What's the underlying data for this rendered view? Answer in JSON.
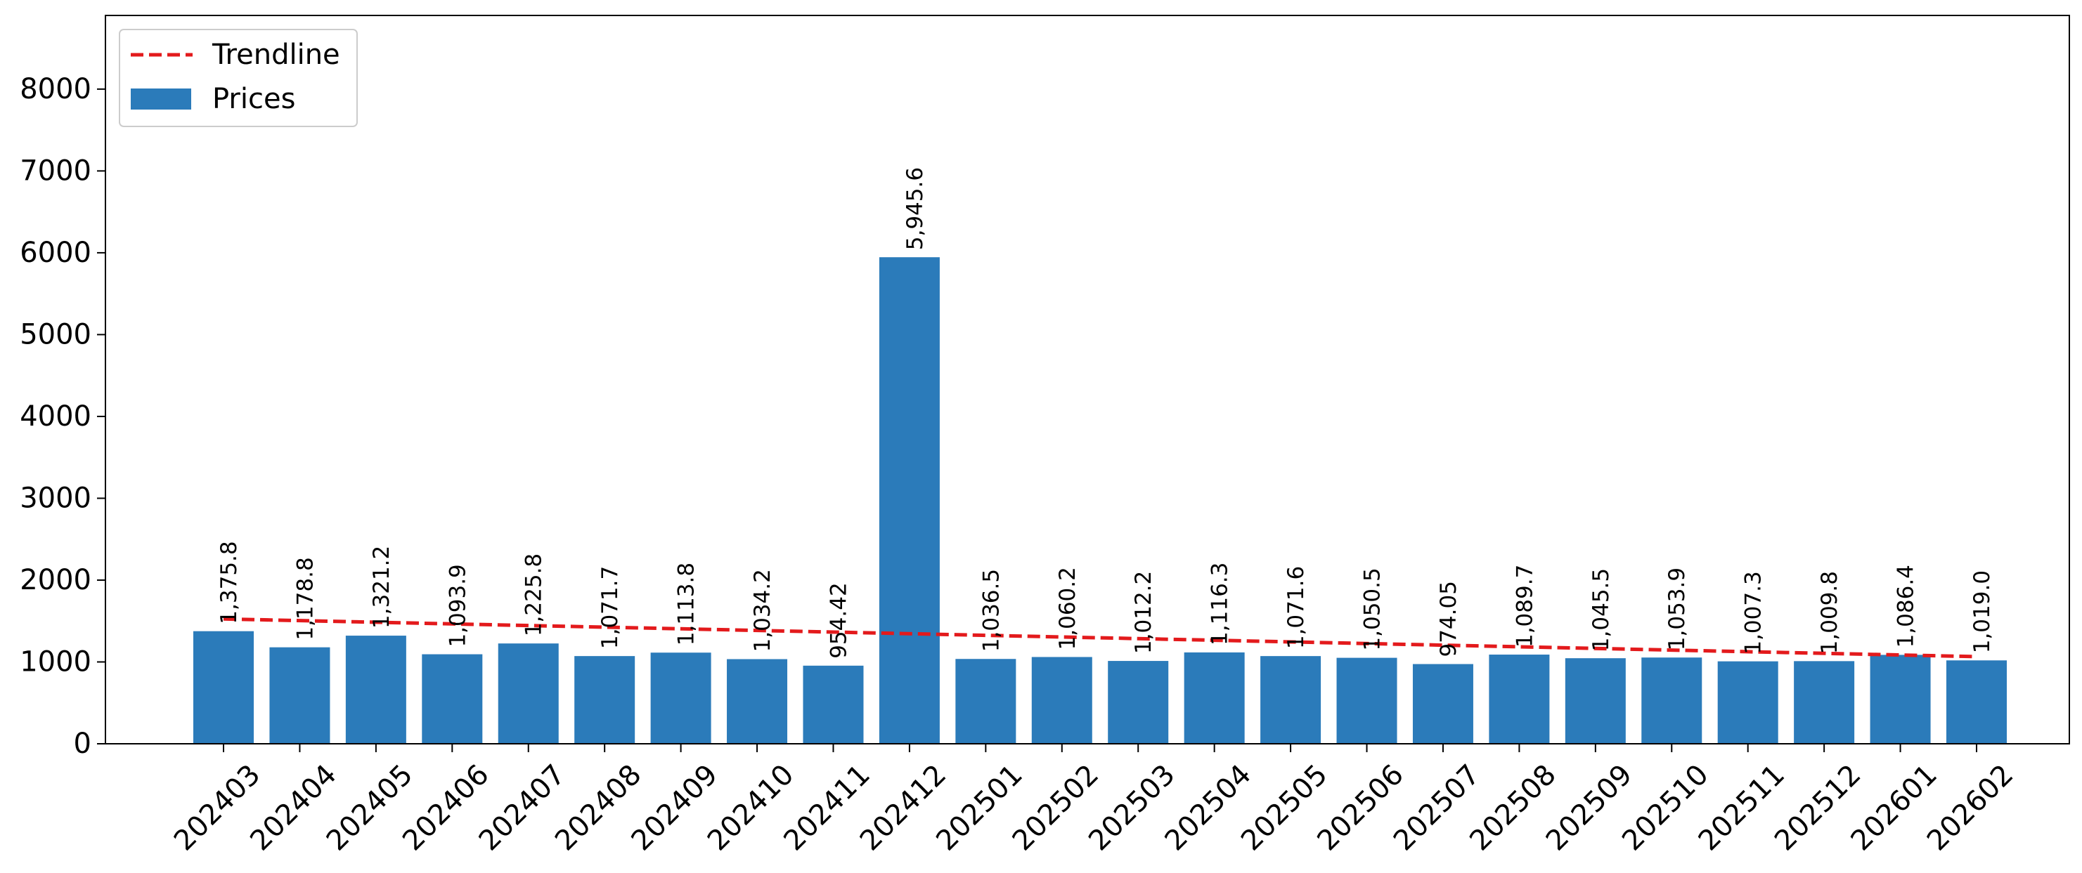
{
  "chart_data": {
    "type": "bar",
    "title": "",
    "xlabel": "",
    "ylabel": "",
    "categories": [
      "202403",
      "202404",
      "202405",
      "202406",
      "202407",
      "202408",
      "202409",
      "202410",
      "202411",
      "202412",
      "202501",
      "202502",
      "202503",
      "202504",
      "202505",
      "202506",
      "202507",
      "202508",
      "202509",
      "202510",
      "202511",
      "202512",
      "202601",
      "202602"
    ],
    "series": [
      {
        "name": "Prices",
        "color": "#2b7bba",
        "values": [
          1375.8,
          1178.8,
          1321.2,
          1093.9,
          1225.8,
          1071.7,
          1113.8,
          1034.2,
          954.42,
          5945.6,
          1036.5,
          1060.2,
          1012.2,
          1116.3,
          1071.6,
          1050.5,
          974.05,
          1089.7,
          1045.5,
          1053.9,
          1007.3,
          1009.8,
          1086.4,
          1019.0
        ],
        "labels": [
          "1,375.8",
          "1,178.8",
          "1,321.2",
          "1,093.9",
          "1,225.8",
          "1,071.7",
          "1,113.8",
          "1,034.2",
          "954.42",
          "5,945.6",
          "1,036.5",
          "1,060.2",
          "1,012.2",
          "1,116.3",
          "1,071.6",
          "1,050.5",
          "974.05",
          "1,089.7",
          "1,045.5",
          "1,053.9",
          "1,007.3",
          "1,009.8",
          "1,086.4",
          "1,019.0"
        ]
      }
    ],
    "trendline": {
      "name": "Trendline",
      "color": "#e31a1c",
      "style": "dashed",
      "start": 1525,
      "end": 1065
    },
    "ylim": [
      0,
      8900
    ],
    "yticks": [
      0,
      1000,
      2000,
      3000,
      4000,
      5000,
      6000,
      7000,
      8000
    ],
    "legend": {
      "position": "top-left",
      "entries": [
        "Trendline",
        "Prices"
      ]
    },
    "grid": false
  }
}
